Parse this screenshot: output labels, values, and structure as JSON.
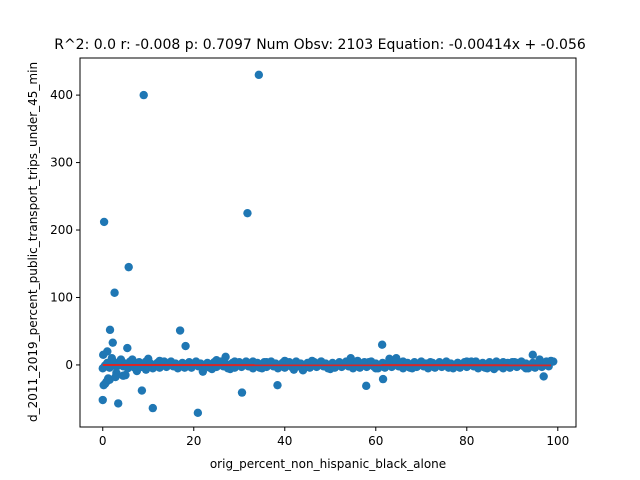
{
  "chart_data": {
    "type": "scatter",
    "title": "R^2: 0.0 r: -0.008 p: 0.7097 Num Obsv: 2103 Equation: -0.00414x + -0.056",
    "xlabel": "orig_percent_non_hispanic_black_alone",
    "ylabel": "d_2011_2019_percent_public_transport_trips_under_45_min",
    "xlim": [
      -5,
      104
    ],
    "ylim": [
      -92,
      455
    ],
    "xticks": [
      0,
      20,
      40,
      60,
      80,
      100
    ],
    "yticks": [
      0,
      100,
      200,
      300,
      400
    ],
    "grid": false,
    "legend": "none",
    "colors": {
      "points": "#1f77b4",
      "fit_line": "#d62728"
    },
    "series": [
      {
        "kind": "points",
        "x": [
          0.0,
          0.3,
          1.0,
          1.6,
          2.2,
          2.6,
          3.4,
          5.4,
          5.7,
          8.6,
          9.0,
          11.0,
          17.0,
          18.2,
          20.9,
          30.6,
          31.8,
          34.3,
          38.4,
          57.9,
          61.4,
          61.6,
          96.9,
          0.1,
          1.2,
          0.5,
          2.0,
          3.0,
          4.0,
          5.0,
          6.0,
          7.5,
          10.0,
          12.5,
          15.0,
          22.0,
          25.0,
          27.0,
          28.0,
          33.0,
          36.0,
          40.0,
          44.0,
          48.0,
          52.0,
          54.5,
          58.5,
          63.0,
          66.0,
          70.0,
          74.0,
          78.0,
          82.0,
          84.5,
          88.0,
          91.0,
          94.5,
          98.5,
          0.2,
          0.8,
          1.5,
          2.8,
          4.5,
          6.5,
          9.5,
          13.5,
          19.5,
          24.0,
          29.0,
          35.0,
          42.0,
          46.0,
          50.0,
          56.0,
          60.0,
          64.5,
          68.0,
          72.0,
          76.0,
          80.0,
          86.0,
          90.0,
          93.0,
          96.0,
          99.0
        ],
        "y": [
          -52,
          212,
          20,
          52,
          33,
          107,
          -57,
          25,
          145,
          -38,
          400,
          -64,
          51,
          28,
          -71,
          -41,
          225,
          430,
          -30,
          -31,
          30,
          -21,
          -17,
          15,
          -20,
          -28,
          10,
          -12,
          8,
          -15,
          5,
          -9,
          9,
          6,
          4,
          -10,
          7,
          12,
          -6,
          5,
          4,
          6,
          -8,
          5,
          3,
          10,
          4,
          9,
          5,
          4,
          3,
          3,
          5,
          -5,
          4,
          3,
          15,
          6,
          -30,
          -25,
          -22,
          -18,
          -16,
          8,
          -7,
          5,
          -4,
          -6,
          5,
          -5,
          -7,
          6,
          -6,
          6,
          -5,
          10,
          -5,
          4,
          -4,
          5,
          -6,
          4,
          -5,
          8,
          5
        ]
      },
      {
        "kind": "line",
        "x": [
          0,
          98.5
        ],
        "y": [
          -0.056,
          -0.464
        ]
      }
    ]
  }
}
